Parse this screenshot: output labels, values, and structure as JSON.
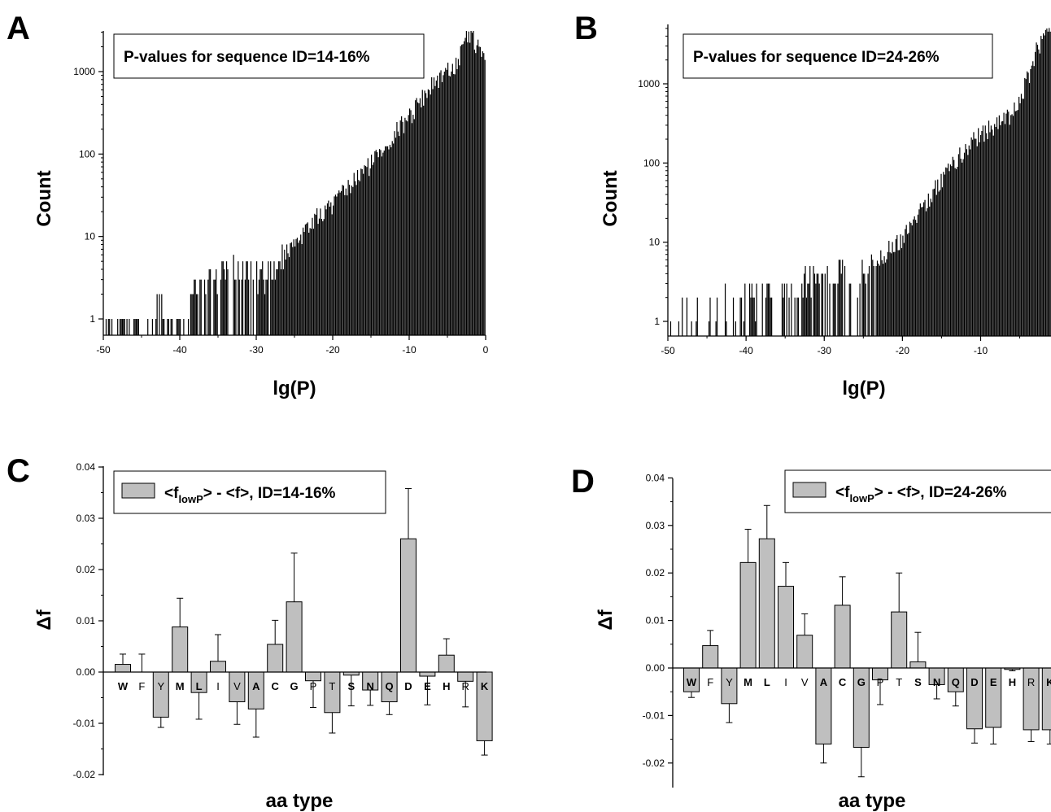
{
  "panels": {
    "A": {
      "letter": "A"
    },
    "B": {
      "letter": "B"
    },
    "C": {
      "letter": "C"
    },
    "D": {
      "letter": "D"
    }
  },
  "legend": {
    "C": {
      "prefix": "<f",
      "sub": "lowP",
      "suffix": "> - <f>, ID=14-16%"
    },
    "D": {
      "prefix": "<f",
      "sub": "lowP",
      "suffix": "> - <f>, ID=24-26%"
    }
  },
  "colors": {
    "bar_fill": "#bfbfbf",
    "histogram": "#000000",
    "axis": "#000000"
  },
  "chart_data": [
    {
      "id": "A",
      "type": "bar",
      "title": "P-values for sequence ID=14-16%",
      "xlabel": "lg(P)",
      "ylabel": "Count",
      "xlim": [
        -50,
        0
      ],
      "ylim": [
        0.7,
        3500
      ],
      "yscale": "log",
      "xticks": [
        "-50",
        "-40",
        "-30",
        "-20",
        "-10",
        "0"
      ],
      "yticks": [
        "1",
        "10",
        "100",
        "1000"
      ],
      "grid": false,
      "profile_x": [
        -50,
        -49,
        -48,
        -44,
        -42.5,
        -41.5,
        -40,
        -38,
        -36,
        -33,
        -30,
        -27,
        -25,
        -22,
        -20,
        -18,
        -15,
        -12,
        -10,
        -8,
        -6,
        -4,
        -3,
        -2.5,
        -2,
        -1.5,
        -1.2,
        -0.6,
        0
      ],
      "profile_count": [
        1,
        1,
        1,
        0.8,
        2,
        1,
        1,
        2,
        3,
        4,
        3.5,
        5,
        9,
        18,
        25,
        40,
        80,
        180,
        300,
        550,
        900,
        1250,
        1800,
        2600,
        3100,
        2700,
        2100,
        1800,
        1500
      ]
    },
    {
      "id": "B",
      "type": "bar",
      "title": "P-values for sequence ID=24-26%",
      "xlabel": "lg(P)",
      "ylabel": "Count",
      "xlim": [
        -50,
        -1
      ],
      "ylim": [
        0.7,
        5000
      ],
      "yscale": "log",
      "xticks": [
        "-50",
        "-40",
        "-30",
        "-20",
        "-10"
      ],
      "yticks": [
        "1",
        "10",
        "100",
        "1000"
      ],
      "grid": false,
      "profile_x": [
        -50,
        -46,
        -45,
        -43,
        -42,
        -40,
        -38,
        -36,
        -34,
        -32,
        -30,
        -28,
        -26,
        -24,
        -22,
        -20,
        -18,
        -16,
        -14,
        -12,
        -10,
        -8,
        -6,
        -5,
        -4,
        -3,
        -2,
        -1
      ],
      "profile_count": [
        1,
        2,
        1.5,
        2,
        1.5,
        2,
        2,
        2.5,
        2,
        3.5,
        3.5,
        4,
        3,
        5,
        8,
        12,
        25,
        45,
        90,
        150,
        250,
        320,
        420,
        600,
        1200,
        2500,
        4000,
        4500
      ]
    },
    {
      "id": "C",
      "type": "bar",
      "xlabel": "aa type",
      "ylabel": "Δf",
      "ylim": [
        -0.02,
        0.04
      ],
      "yticks": [
        "-0.02",
        "-0.01",
        "0.00",
        "0.01",
        "0.02",
        "0.03",
        "0.04"
      ],
      "categories": [
        "W",
        "F",
        "Y",
        "M",
        "L",
        "I",
        "V",
        "A",
        "C",
        "G",
        "P",
        "T",
        "S",
        "N",
        "Q",
        "D",
        "E",
        "H",
        "R",
        "K"
      ],
      "series": [
        {
          "name": "<flowP> - <f>, ID=14-16%",
          "values": [
            0.0015,
            0.0,
            -0.0088,
            0.0088,
            -0.004,
            0.0021,
            -0.0058,
            -0.0072,
            0.0054,
            0.0137,
            -0.0017,
            -0.0079,
            -0.0006,
            -0.0035,
            -0.0058,
            0.026,
            -0.0008,
            0.0033,
            -0.0018,
            -0.0134
          ],
          "errors": [
            0.002,
            0.0035,
            0.002,
            0.0056,
            0.0052,
            0.0052,
            0.0044,
            0.0055,
            0.0047,
            0.0095,
            0.0052,
            0.004,
            0.006,
            0.003,
            0.0025,
            0.0098,
            0.0056,
            0.0032,
            0.005,
            0.0028
          ]
        }
      ]
    },
    {
      "id": "D",
      "type": "bar",
      "xlabel": "aa type",
      "ylabel": "Δf",
      "ylim": [
        -0.025,
        0.04
      ],
      "yticks": [
        "-0.02",
        "-0.01",
        "0.00",
        "0.01",
        "0.02",
        "0.03",
        "0.04"
      ],
      "categories": [
        "W",
        "F",
        "Y",
        "M",
        "L",
        "I",
        "V",
        "A",
        "C",
        "G",
        "P",
        "T",
        "S",
        "N",
        "Q",
        "D",
        "E",
        "H",
        "R",
        "K"
      ],
      "series": [
        {
          "name": "<flowP> - <f>, ID=24-26%",
          "values": [
            -0.005,
            0.0047,
            -0.0075,
            0.0222,
            0.0272,
            0.0172,
            0.0069,
            -0.016,
            0.0132,
            -0.0167,
            -0.0025,
            0.0118,
            0.0013,
            -0.0035,
            -0.005,
            -0.0128,
            -0.0125,
            -0.0003,
            -0.013,
            -0.013
          ],
          "errors": [
            0.0012,
            0.0032,
            0.004,
            0.007,
            0.007,
            0.005,
            0.0045,
            0.004,
            0.006,
            0.0062,
            0.0052,
            0.0082,
            0.0062,
            0.003,
            0.003,
            0.003,
            0.0035,
            0.0003,
            0.0025,
            0.003
          ]
        }
      ]
    }
  ]
}
